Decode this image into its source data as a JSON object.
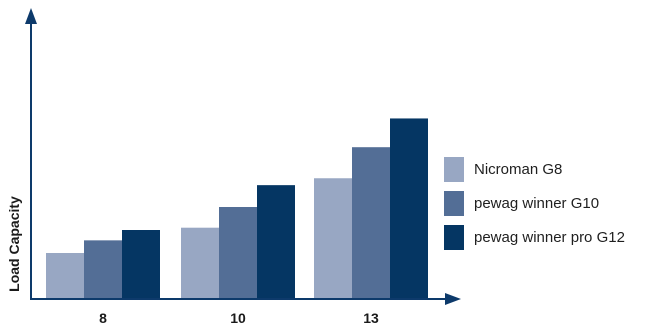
{
  "chart_data": {
    "type": "bar",
    "title": "",
    "xlabel": "",
    "ylabel": "Load Capacity",
    "categories": [
      "8",
      "10",
      "13"
    ],
    "series": [
      {
        "name": "Nicroman G8",
        "color": "#98a7c3",
        "values": [
          40,
          62,
          105
        ]
      },
      {
        "name": "pewag winner G10",
        "color": "#536e96",
        "values": [
          51,
          80,
          132
        ]
      },
      {
        "name": "pewag winner pro G12",
        "color": "#053663",
        "values": [
          60,
          99,
          157
        ]
      }
    ],
    "ylim": [
      0,
      260
    ],
    "grid": false,
    "legend": "right",
    "axis_color": "#0d3a6b"
  }
}
